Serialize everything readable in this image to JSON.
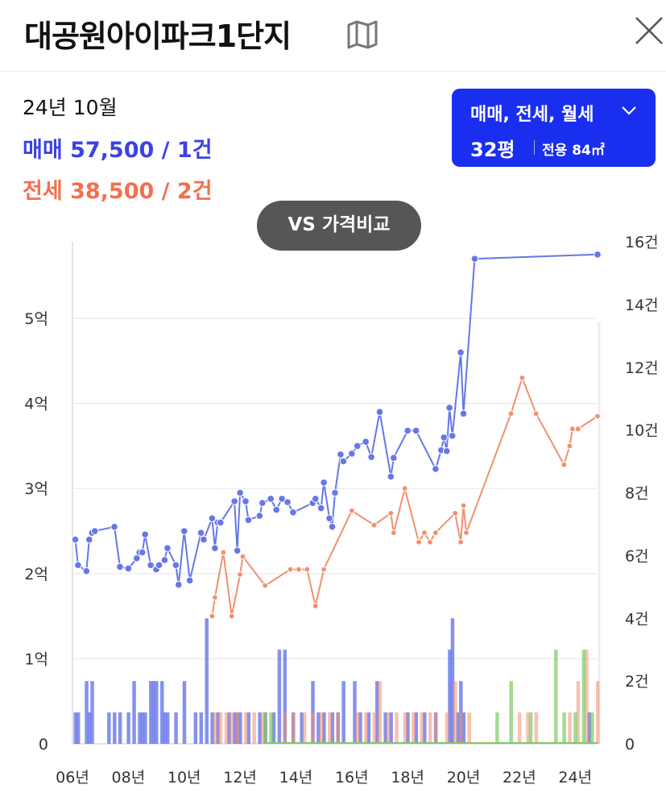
{
  "header": {
    "title": "대공원아이파크1단지",
    "map_icon": "map-icon",
    "close_icon": "close-icon"
  },
  "summary": {
    "date": "24년 10월",
    "sale": "매매 57,500 / 1건",
    "jeonse": "전세 38,500 / 2건"
  },
  "filter": {
    "types": "매매, 전세, 월세",
    "pyeong": "32평",
    "area": "전용 84㎡"
  },
  "vs_button": {
    "label": "VS 가격비교"
  },
  "colors": {
    "sale": "#6677e8",
    "sale_text": "#3b42e6",
    "jeonse": "#f0906f",
    "jeonse_text": "#f2704f",
    "monthly": "#7ccb63",
    "filter_bg": "#1a2ef0"
  },
  "chart_data": {
    "type": "line",
    "x_ticks": [
      {
        "x": 2006,
        "label": "06년"
      },
      {
        "x": 2008,
        "label": "08년"
      },
      {
        "x": 2010,
        "label": "10년"
      },
      {
        "x": 2012,
        "label": "12년"
      },
      {
        "x": 2014,
        "label": "14년"
      },
      {
        "x": 2016,
        "label": "16년"
      },
      {
        "x": 2018,
        "label": "18년"
      },
      {
        "x": 2020,
        "label": "20년"
      },
      {
        "x": 2022,
        "label": "22년"
      },
      {
        "x": 2024,
        "label": "24년"
      }
    ],
    "xlim": [
      2006.0,
      2024.8
    ],
    "y_left": {
      "ticks": [
        {
          "v": 0,
          "label": "0"
        },
        {
          "v": 1,
          "label": "1억"
        },
        {
          "v": 2,
          "label": "2억"
        },
        {
          "v": 3,
          "label": "3억"
        },
        {
          "v": 4,
          "label": "4억"
        },
        {
          "v": 5,
          "label": "5억"
        }
      ],
      "ylim": [
        0,
        5.9
      ]
    },
    "y_right": {
      "ticks": [
        {
          "v": 0,
          "label": "0"
        },
        {
          "v": 2,
          "label": "2건"
        },
        {
          "v": 4,
          "label": "4건"
        },
        {
          "v": 6,
          "label": "6건"
        },
        {
          "v": 8,
          "label": "8건"
        },
        {
          "v": 10,
          "label": "10건"
        },
        {
          "v": 12,
          "label": "12건"
        },
        {
          "v": 14,
          "label": "14건"
        },
        {
          "v": 16,
          "label": "16건"
        }
      ],
      "ylim": [
        0,
        16
      ]
    },
    "grid": true,
    "series": [
      {
        "kind": "price",
        "points": [
          [
            2006.1,
            2.4
          ],
          [
            2006.2,
            2.1
          ],
          [
            2006.5,
            2.03
          ],
          [
            2006.6,
            2.4
          ],
          [
            2006.7,
            2.48
          ],
          [
            2006.8,
            2.5
          ],
          [
            2007.5,
            2.55
          ],
          [
            2007.7,
            2.08
          ],
          [
            2008.0,
            2.06
          ],
          [
            2008.3,
            2.18
          ],
          [
            2008.4,
            2.25
          ],
          [
            2008.5,
            2.25
          ],
          [
            2008.6,
            2.46
          ],
          [
            2008.8,
            2.1
          ],
          [
            2009.0,
            2.05
          ],
          [
            2009.1,
            2.1
          ],
          [
            2009.3,
            2.16
          ],
          [
            2009.4,
            2.3
          ],
          [
            2009.7,
            2.1
          ],
          [
            2009.8,
            1.87
          ],
          [
            2010.0,
            2.5
          ],
          [
            2010.2,
            1.92
          ],
          [
            2010.6,
            2.48
          ],
          [
            2010.7,
            2.4
          ],
          [
            2011.0,
            2.65
          ],
          [
            2011.1,
            2.3
          ],
          [
            2011.2,
            2.6
          ],
          [
            2011.3,
            2.6
          ],
          [
            2011.8,
            2.85
          ],
          [
            2011.9,
            2.27
          ],
          [
            2012.0,
            2.95
          ],
          [
            2012.2,
            2.85
          ],
          [
            2012.3,
            2.63
          ],
          [
            2012.7,
            2.68
          ],
          [
            2012.8,
            2.83
          ],
          [
            2013.1,
            2.88
          ],
          [
            2013.3,
            2.75
          ],
          [
            2013.5,
            2.88
          ],
          [
            2013.7,
            2.84
          ],
          [
            2013.9,
            2.72
          ],
          [
            2014.6,
            2.83
          ],
          [
            2014.7,
            2.88
          ],
          [
            2014.9,
            2.77
          ],
          [
            2015.0,
            3.07
          ],
          [
            2015.2,
            2.65
          ],
          [
            2015.3,
            2.55
          ],
          [
            2015.4,
            2.95
          ],
          [
            2015.6,
            3.4
          ],
          [
            2015.7,
            3.32
          ],
          [
            2016.0,
            3.41
          ],
          [
            2016.2,
            3.5
          ],
          [
            2016.5,
            3.55
          ],
          [
            2016.7,
            3.37
          ],
          [
            2017.0,
            3.9
          ],
          [
            2017.4,
            3.14
          ],
          [
            2017.5,
            3.36
          ],
          [
            2018.0,
            3.68
          ],
          [
            2018.3,
            3.68
          ],
          [
            2019.0,
            3.23
          ],
          [
            2019.2,
            3.45
          ],
          [
            2019.3,
            3.6
          ],
          [
            2019.4,
            3.44
          ],
          [
            2019.5,
            3.95
          ],
          [
            2019.6,
            3.62
          ],
          [
            2019.9,
            4.6
          ],
          [
            2020.0,
            3.88
          ],
          [
            2020.4,
            5.7
          ],
          [
            2024.8,
            5.75
          ]
        ]
      },
      {
        "kind": "price",
        "points": [
          [
            2011.0,
            1.5
          ],
          [
            2011.1,
            1.72
          ],
          [
            2011.4,
            2.25
          ],
          [
            2011.7,
            1.5
          ],
          [
            2012.0,
            1.99
          ],
          [
            2012.1,
            2.2
          ],
          [
            2012.9,
            1.86
          ],
          [
            2013.8,
            2.05
          ],
          [
            2014.1,
            2.05
          ],
          [
            2014.4,
            2.05
          ],
          [
            2014.7,
            1.62
          ],
          [
            2015.0,
            2.05
          ],
          [
            2016.0,
            2.74
          ],
          [
            2016.8,
            2.57
          ],
          [
            2017.4,
            2.71
          ],
          [
            2017.5,
            2.48
          ],
          [
            2017.9,
            3.0
          ],
          [
            2018.4,
            2.37
          ],
          [
            2018.6,
            2.48
          ],
          [
            2018.8,
            2.37
          ],
          [
            2019.0,
            2.48
          ],
          [
            2019.7,
            2.71
          ],
          [
            2019.9,
            2.37
          ],
          [
            2020.0,
            2.8
          ],
          [
            2020.1,
            2.48
          ],
          [
            2021.7,
            3.88
          ],
          [
            2022.1,
            4.3
          ],
          [
            2022.6,
            3.88
          ],
          [
            2023.6,
            3.28
          ],
          [
            2023.8,
            3.5
          ],
          [
            2023.9,
            3.7
          ],
          [
            2024.1,
            3.7
          ],
          [
            2024.8,
            3.85
          ]
        ]
      },
      {
        "kind": "volume",
        "bars": [
          [
            2006.1,
            1
          ],
          [
            2006.2,
            1
          ],
          [
            2006.5,
            2
          ],
          [
            2006.6,
            1
          ],
          [
            2006.7,
            2
          ],
          [
            2007.3,
            1
          ],
          [
            2007.5,
            1
          ],
          [
            2007.7,
            1
          ],
          [
            2008.0,
            1
          ],
          [
            2008.2,
            2
          ],
          [
            2008.4,
            1
          ],
          [
            2008.5,
            1
          ],
          [
            2008.6,
            1
          ],
          [
            2008.8,
            2
          ],
          [
            2008.9,
            2
          ],
          [
            2009.0,
            2
          ],
          [
            2009.2,
            2
          ],
          [
            2009.3,
            1
          ],
          [
            2009.4,
            1
          ],
          [
            2009.7,
            1
          ],
          [
            2010.0,
            2
          ],
          [
            2010.4,
            1
          ],
          [
            2010.6,
            1
          ],
          [
            2010.8,
            4
          ],
          [
            2011.0,
            1
          ],
          [
            2011.2,
            1
          ],
          [
            2011.6,
            1
          ],
          [
            2011.8,
            1
          ],
          [
            2011.9,
            1
          ],
          [
            2012.0,
            1
          ],
          [
            2012.3,
            1
          ],
          [
            2012.7,
            1
          ],
          [
            2012.9,
            1
          ],
          [
            2013.2,
            1
          ],
          [
            2013.4,
            3
          ],
          [
            2013.6,
            3
          ],
          [
            2013.9,
            1
          ],
          [
            2014.2,
            1
          ],
          [
            2014.6,
            2
          ],
          [
            2014.8,
            1
          ],
          [
            2015.0,
            1
          ],
          [
            2015.3,
            1
          ],
          [
            2015.5,
            1
          ],
          [
            2015.7,
            2
          ],
          [
            2016.1,
            2
          ],
          [
            2016.3,
            1
          ],
          [
            2016.6,
            1
          ],
          [
            2016.9,
            2
          ],
          [
            2017.2,
            1
          ],
          [
            2017.4,
            1
          ],
          [
            2018.0,
            1
          ],
          [
            2018.3,
            1
          ],
          [
            2018.6,
            1
          ],
          [
            2019.0,
            1
          ],
          [
            2019.5,
            3
          ],
          [
            2019.6,
            4
          ],
          [
            2019.8,
            1
          ],
          [
            2019.9,
            2
          ],
          [
            2020.0,
            1
          ],
          [
            2024.5,
            1
          ]
        ]
      },
      {
        "kind": "volume",
        "bars": [
          [
            2011.1,
            1
          ],
          [
            2011.3,
            1
          ],
          [
            2011.5,
            1
          ],
          [
            2011.7,
            1
          ],
          [
            2011.9,
            1
          ],
          [
            2012.2,
            1
          ],
          [
            2012.5,
            1
          ],
          [
            2012.8,
            1
          ],
          [
            2013.6,
            1
          ],
          [
            2013.9,
            1
          ],
          [
            2014.3,
            1
          ],
          [
            2014.6,
            1
          ],
          [
            2014.9,
            1
          ],
          [
            2015.2,
            1
          ],
          [
            2015.5,
            1
          ],
          [
            2016.2,
            1
          ],
          [
            2016.5,
            1
          ],
          [
            2016.8,
            1
          ],
          [
            2017.0,
            2
          ],
          [
            2017.3,
            1
          ],
          [
            2017.6,
            1
          ],
          [
            2017.9,
            1
          ],
          [
            2018.2,
            1
          ],
          [
            2018.5,
            1
          ],
          [
            2018.8,
            1
          ],
          [
            2019.0,
            1
          ],
          [
            2019.4,
            1
          ],
          [
            2019.7,
            2
          ],
          [
            2019.9,
            1
          ],
          [
            2020.2,
            1
          ],
          [
            2022.0,
            1
          ],
          [
            2022.3,
            1
          ],
          [
            2022.6,
            1
          ],
          [
            2023.8,
            1
          ],
          [
            2024.1,
            2
          ],
          [
            2024.4,
            3
          ],
          [
            2024.8,
            2
          ]
        ]
      },
      {
        "kind": "volume",
        "bars": [
          [
            2012.9,
            1
          ],
          [
            2013.1,
            1
          ],
          [
            2021.2,
            1
          ],
          [
            2021.7,
            2
          ],
          [
            2022.4,
            1
          ],
          [
            2023.3,
            3
          ],
          [
            2023.6,
            1
          ],
          [
            2024.0,
            1
          ],
          [
            2024.3,
            3
          ],
          [
            2024.6,
            1
          ]
        ]
      }
    ]
  }
}
